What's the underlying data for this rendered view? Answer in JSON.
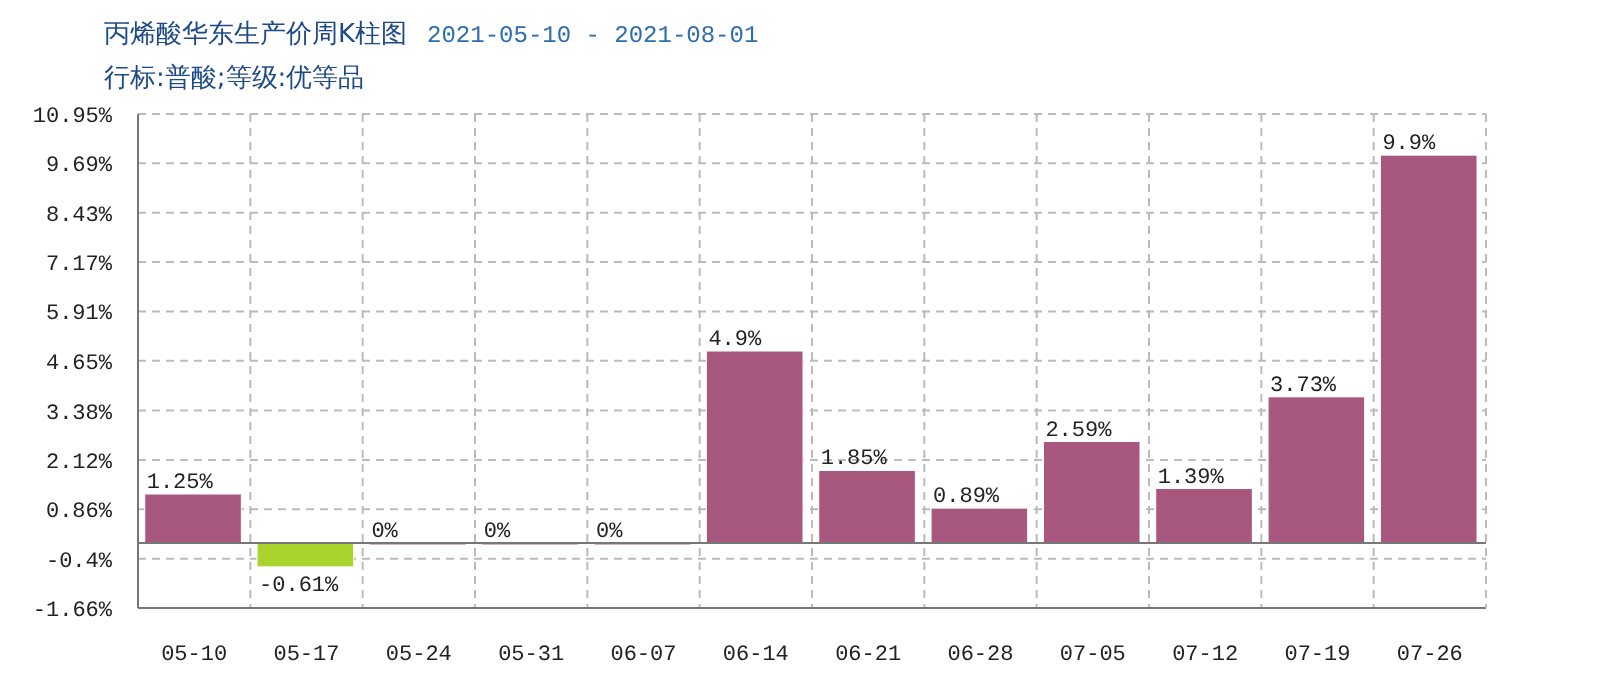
{
  "chart_data": {
    "type": "bar",
    "title": "丙烯酸华东生产价周K柱图",
    "subtitle": "行标:普酸;等级:优等品",
    "annotations": [
      "2021-05-10 - 2021-08-01"
    ],
    "categories": [
      "05-10",
      "05-17",
      "05-24",
      "05-31",
      "06-07",
      "06-14",
      "06-21",
      "06-28",
      "07-05",
      "07-12",
      "07-19",
      "07-26"
    ],
    "values": [
      1.25,
      -0.61,
      0,
      0,
      0,
      4.9,
      1.85,
      0.89,
      2.59,
      1.39,
      3.73,
      9.9
    ],
    "colors": [
      "#a8577e",
      "#a8d42c",
      "#a8577e",
      "#a8577e",
      "#a8577e",
      "#a8577e",
      "#a8577e",
      "#a8577e",
      "#a8577e",
      "#a8577e",
      "#a8577e",
      "#a8577e"
    ],
    "value_labels": [
      "1.25%",
      "-0.61%",
      "0%",
      "0%",
      "0%",
      "4.9%",
      "1.85%",
      "0.89%",
      "2.59%",
      "1.39%",
      "3.73%",
      "9.9%"
    ],
    "ylim": [
      -1.66,
      10.95
    ],
    "yticks": [
      {
        "value": -1.66,
        "label": "-1.66%"
      },
      {
        "value": -0.4,
        "label": "-0.4%"
      },
      {
        "value": 0.86,
        "label": "0.86%"
      },
      {
        "value": 2.12,
        "label": "2.12%"
      },
      {
        "value": 3.38,
        "label": "3.38%"
      },
      {
        "value": 4.65,
        "label": "4.65%"
      },
      {
        "value": 5.91,
        "label": "5.91%"
      },
      {
        "value": 7.17,
        "label": "7.17%"
      },
      {
        "value": 8.43,
        "label": "8.43%"
      },
      {
        "value": 9.69,
        "label": "9.69%"
      },
      {
        "value": 10.95,
        "label": "10.95%"
      }
    ],
    "grid": true
  }
}
